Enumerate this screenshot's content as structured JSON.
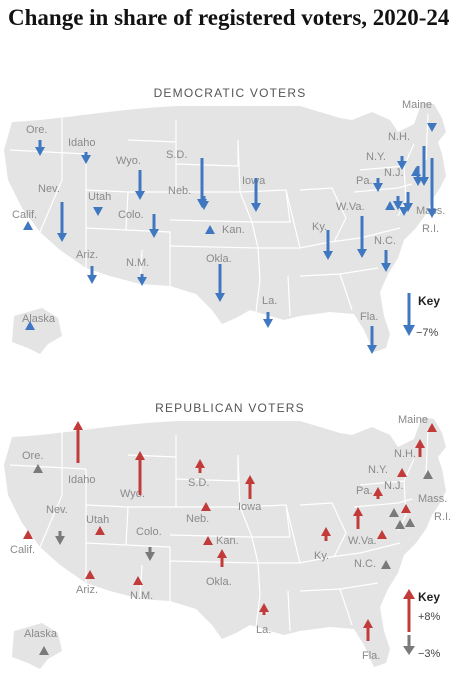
{
  "title": "Change in share of registered voters, 2020-24",
  "colors": {
    "democratic": "#3f78c0",
    "republican": "#c23b3b",
    "decline": "#7a7a7a",
    "land": "#e4e4e4"
  },
  "dem": {
    "panel_title": "DEMOCRATIC VOTERS",
    "key_title": "Key",
    "key_value": "−7%",
    "labels": [
      "Maine",
      "Ore.",
      "Idaho",
      "S.D.",
      "N.H.",
      "N.Y.",
      "Wyo.",
      "Iowa",
      "Pa.",
      "N.J.",
      "Nev.",
      "Neb.",
      "Utah",
      "Calif.",
      "Colo.",
      "W.Va.",
      "Mass.",
      "Kan.",
      "R.I.",
      "Ky.",
      "N.C.",
      "Ariz.",
      "N.M.",
      "Okla.",
      "La.",
      "Alaska",
      "Fla."
    ]
  },
  "rep": {
    "panel_title": "REPUBLICAN VOTERS",
    "key_title": "Key",
    "key_value_up": "+8%",
    "key_value_down": "−3%",
    "labels": [
      "Maine",
      "Ore.",
      "Idaho",
      "N.H.",
      "Wyo.",
      "S.D.",
      "N.Y.",
      "Pa.",
      "N.J.",
      "Mass.",
      "Nev.",
      "Iowa",
      "Utah",
      "Neb.",
      "R.I.",
      "Colo.",
      "Kan.",
      "W.Va.",
      "Calif.",
      "Ky.",
      "N.C.",
      "Okla.",
      "Ariz.",
      "N.M.",
      "La.",
      "Alaska",
      "Fla."
    ]
  }
}
